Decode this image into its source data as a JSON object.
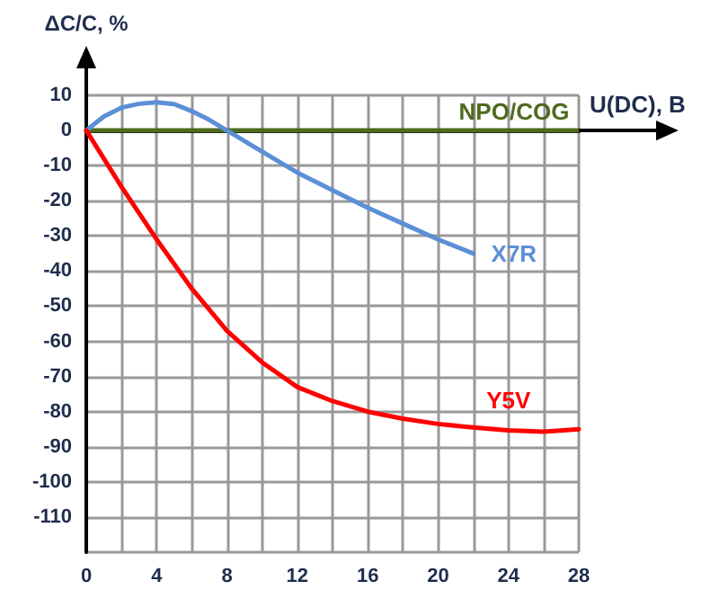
{
  "chart_data": {
    "type": "line",
    "xlabel": "U(DC), B",
    "ylabel": "ΔC/C, %",
    "xlim": [
      0,
      28
    ],
    "ylim": [
      -120,
      10
    ],
    "xticks": [
      0,
      {
        "value": 2,
        "label": null
      },
      4,
      {
        "value": 6,
        "label": null
      },
      8,
      {
        "value": 10,
        "label": null
      },
      12,
      {
        "value": 14,
        "label": null
      },
      16,
      {
        "value": 18,
        "label": null
      },
      20,
      {
        "value": 22,
        "label": null
      },
      24,
      {
        "value": 26,
        "label": null
      },
      28
    ],
    "yticks": [
      {
        "value": -120,
        "label": null
      },
      -110,
      -100,
      -90,
      -80,
      -70,
      -60,
      -50,
      -40,
      -30,
      -20,
      -10,
      0,
      10
    ],
    "grid": true,
    "legend": false,
    "marker": "none",
    "line_style": "solid",
    "series": [
      {
        "name": "NPO/COG",
        "color": "#4f6a1f",
        "x": [
          0,
          28
        ],
        "values": [
          0,
          0
        ]
      },
      {
        "name": "X7R",
        "color": "#5b8fd6",
        "x": [
          0,
          1,
          2,
          3,
          4,
          5,
          6,
          7,
          8,
          9,
          10,
          12,
          14,
          16,
          18,
          20,
          22
        ],
        "values": [
          0,
          4,
          6.5,
          7.6,
          8,
          7.5,
          5.5,
          3,
          0,
          -3,
          -6,
          -12,
          -17,
          -22,
          -26.5,
          -31,
          -35
        ]
      },
      {
        "name": "Y5V",
        "color": "#ff0000",
        "x": [
          0,
          2,
          4,
          6,
          8,
          10,
          12,
          14,
          16,
          18,
          20,
          22,
          24,
          26,
          28
        ],
        "values": [
          0,
          -16,
          -31,
          -45,
          -57,
          -66,
          -73,
          -77,
          -80,
          -82,
          -83.5,
          -84.5,
          -85.3,
          -85.7,
          -85
        ]
      }
    ]
  }
}
